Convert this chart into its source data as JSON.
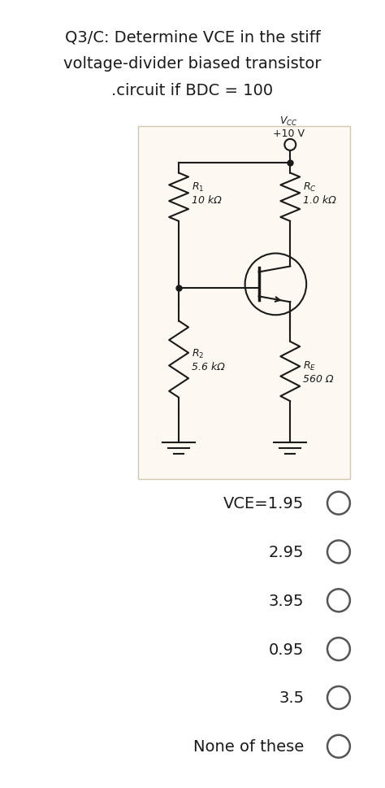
{
  "title_lines": [
    "Q3/C: Determine VCE in the stiff",
    "voltage-divider biased transistor",
    ".circuit if BDC = 100"
  ],
  "choices": [
    "VCE=1.95",
    "2.95",
    "3.95",
    "0.95",
    "3.5",
    "None of these"
  ],
  "bg_color": "#ffffff",
  "text_color": "#1a1a1a",
  "circuit_bg": "#fdf9f2",
  "circuit_border": "#d0c8b0"
}
